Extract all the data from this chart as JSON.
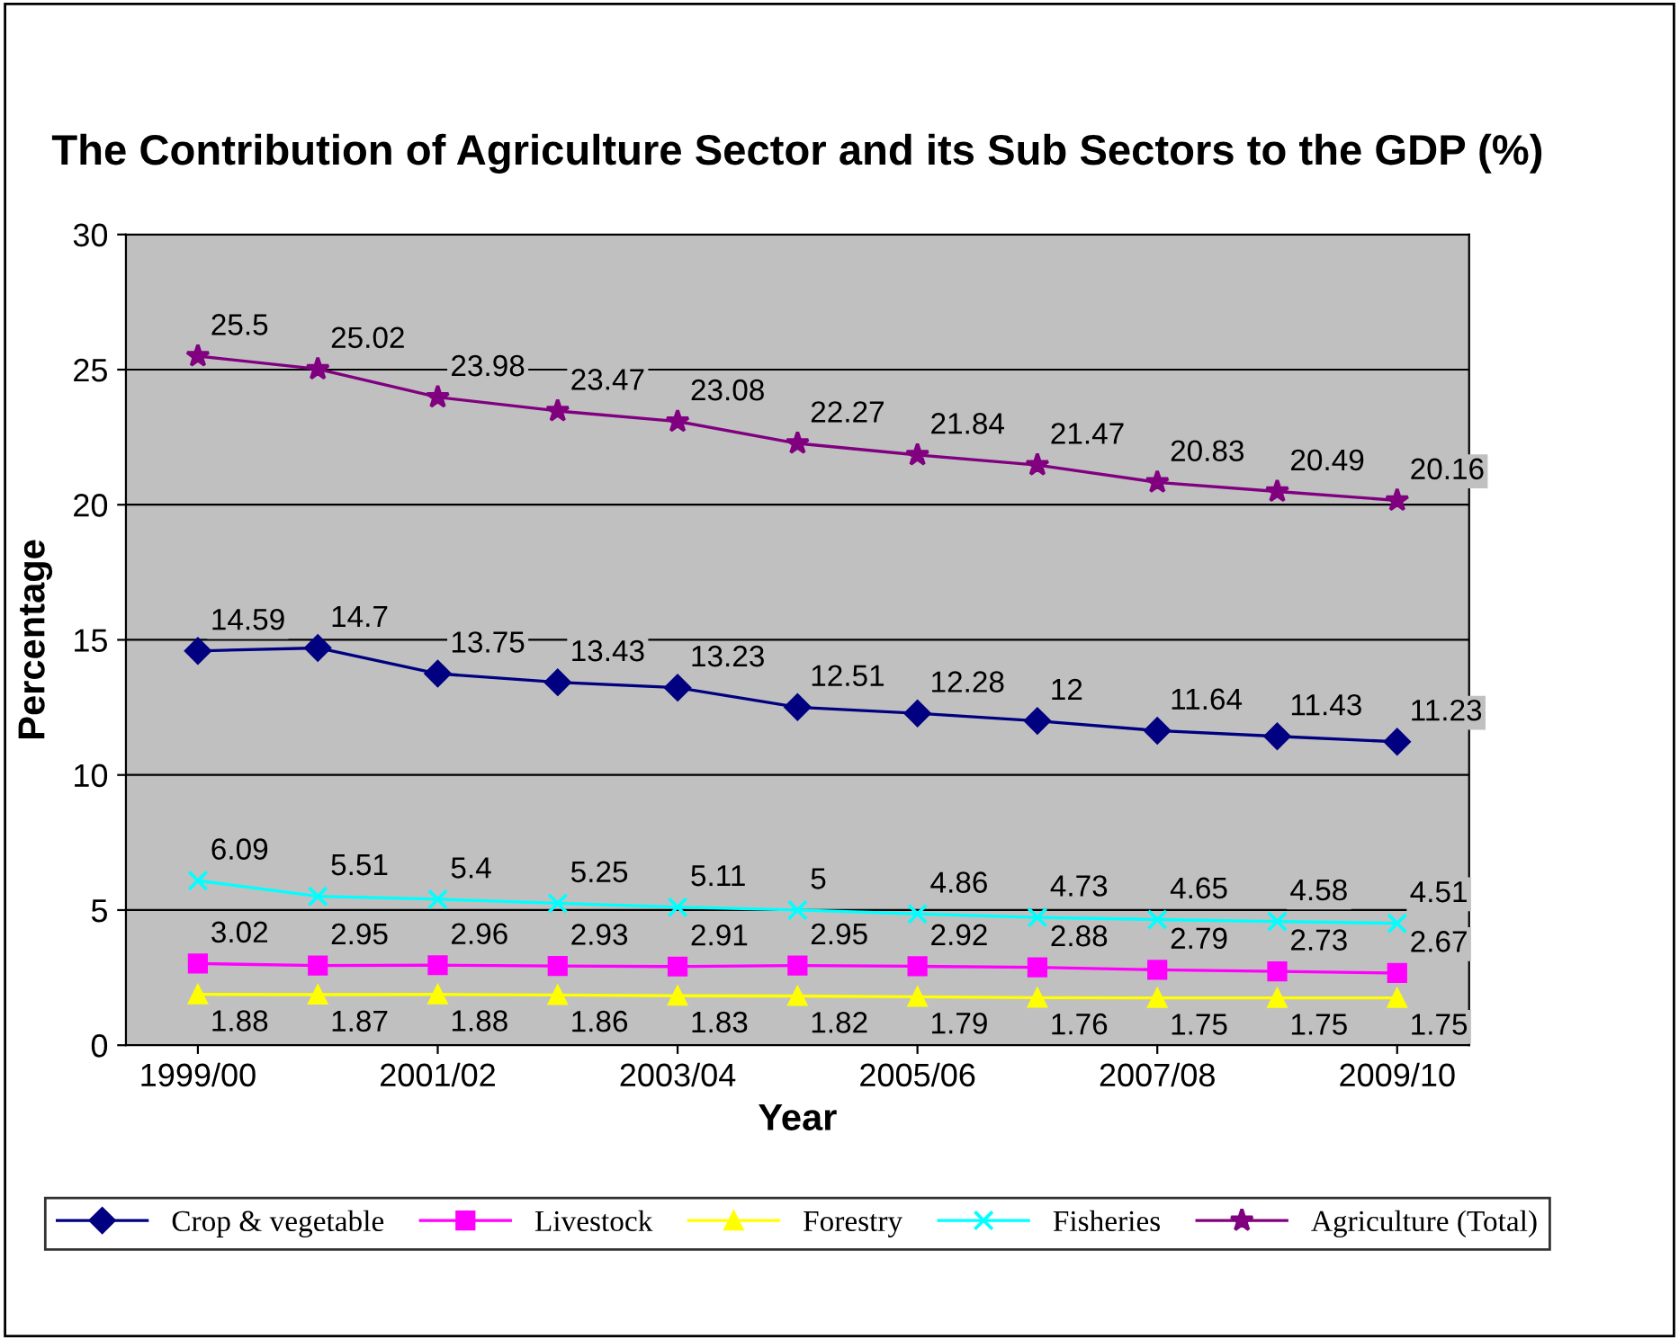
{
  "chart_data": {
    "type": "line",
    "title": "The Contribution of Agriculture Sector and its Sub Sectors to the GDP (%)",
    "xlabel": "Year",
    "ylabel": "Percentage",
    "categories": [
      "1999/00",
      null,
      "2001/02",
      null,
      "2003/04",
      null,
      "2005/06",
      null,
      "2007/08",
      null,
      "2009/10"
    ],
    "series": [
      {
        "name": "Crop & vegetable",
        "color": "#000080",
        "marker": "diamond",
        "values": [
          14.59,
          14.7,
          13.75,
          13.43,
          13.23,
          12.51,
          12.28,
          12,
          11.64,
          11.43,
          11.23
        ]
      },
      {
        "name": "Livestock",
        "color": "#ff00ff",
        "marker": "square",
        "values": [
          3.02,
          2.95,
          2.96,
          2.93,
          2.91,
          2.95,
          2.92,
          2.88,
          2.79,
          2.73,
          2.67
        ]
      },
      {
        "name": "Forestry",
        "color": "#ffff00",
        "marker": "triangle",
        "values": [
          1.88,
          1.87,
          1.88,
          1.86,
          1.83,
          1.82,
          1.79,
          1.76,
          1.75,
          1.75,
          1.75
        ]
      },
      {
        "name": "Fisheries",
        "color": "#00ffff",
        "marker": "cross",
        "values": [
          6.09,
          5.51,
          5.4,
          5.25,
          5.11,
          5,
          4.86,
          4.73,
          4.65,
          4.58,
          4.51
        ]
      },
      {
        "name": "Agriculture (Total)",
        "color": "#800080",
        "marker": "star",
        "values": [
          25.5,
          25.02,
          23.98,
          23.47,
          23.08,
          22.27,
          21.84,
          21.47,
          20.83,
          20.49,
          20.16
        ]
      }
    ],
    "ylim": [
      0,
      30
    ],
    "yticks": [
      0,
      5,
      10,
      15,
      20,
      25,
      30
    ],
    "grid": "y",
    "legend": "bottom",
    "data_labels": true,
    "line_style": "solid"
  }
}
